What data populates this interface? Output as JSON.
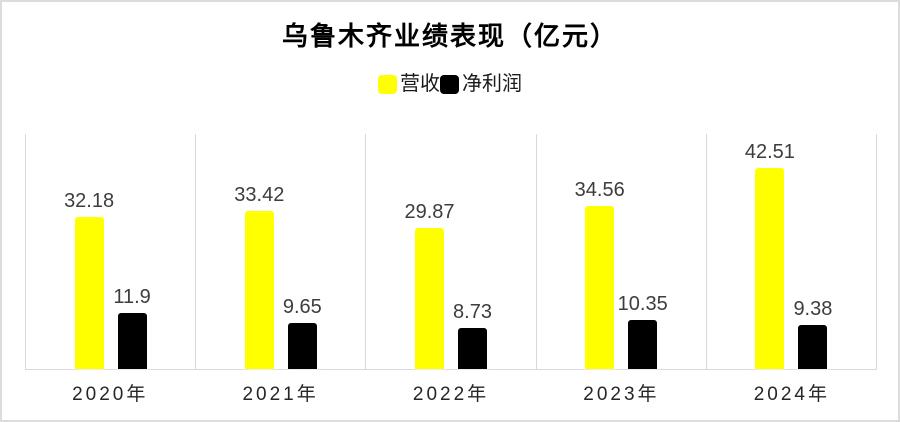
{
  "title": "乌鲁木齐业绩表现（亿元）",
  "legend": [
    {
      "label": "营收",
      "color": "#ffff00"
    },
    {
      "label": "净利润",
      "color": "#000000"
    }
  ],
  "chart_data": {
    "type": "bar",
    "title": "乌鲁木齐业绩表现（亿元）",
    "categories": [
      "2020年",
      "2021年",
      "2022年",
      "2023年",
      "2024年"
    ],
    "series": [
      {
        "name": "营收",
        "color": "#ffff00",
        "values": [
          32.18,
          33.42,
          29.87,
          34.56,
          42.51
        ]
      },
      {
        "name": "净利润",
        "color": "#000000",
        "values": [
          11.9,
          9.65,
          8.73,
          10.35,
          9.38
        ]
      }
    ],
    "xlabel": "",
    "ylabel": "",
    "ylim": [
      0,
      50
    ],
    "grid": "vertical panel separators only, color #d9d9d9",
    "legend_position": "top-center",
    "value_labels": "above each bar"
  },
  "colors": {
    "background": "#ffffff",
    "border": "#dcdcdc",
    "gridline": "#d9d9d9",
    "value_label_text": "#3d3d3d",
    "category_text": "#262626",
    "title_text": "#000000"
  }
}
